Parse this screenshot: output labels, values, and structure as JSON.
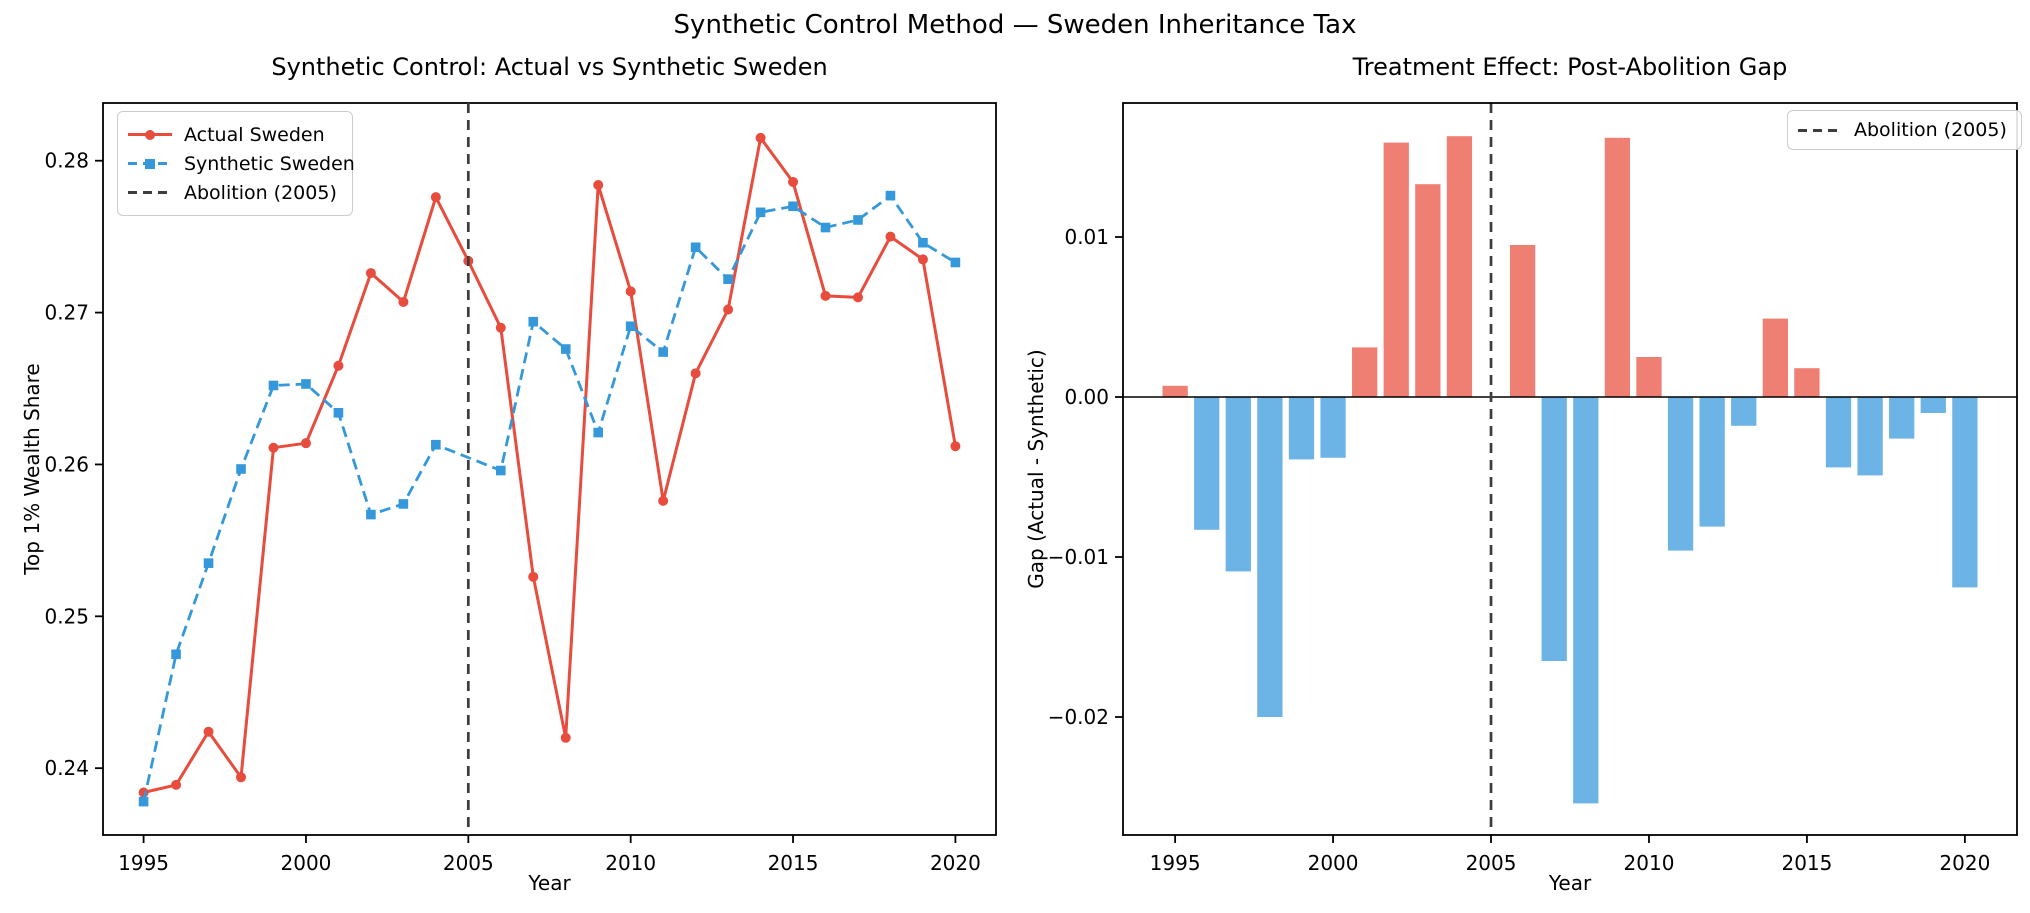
{
  "figure": {
    "suptitle": "Synthetic Control Method — Sweden Inheritance Tax",
    "background": "#ffffff"
  },
  "colors": {
    "actual_line": "#e74c3c",
    "synthetic_line": "#3498db",
    "bar_positive": "#ee7f72",
    "bar_negative": "#6db4e6",
    "abolition_line": "#3d3d3d",
    "zero_line": "#000000",
    "axis": "#000000",
    "legend_border": "#cccccc"
  },
  "chart_data": [
    {
      "type": "line",
      "title": "Synthetic Control: Actual vs Synthetic Sweden",
      "xlabel": "Year",
      "ylabel": "Top 1% Wealth Share",
      "x": [
        1995,
        1996,
        1997,
        1998,
        1999,
        2000,
        2001,
        2002,
        2003,
        2004,
        2005,
        2006,
        2007,
        2008,
        2009,
        2010,
        2011,
        2012,
        2013,
        2014,
        2015,
        2016,
        2017,
        2018,
        2019,
        2020
      ],
      "series": [
        {
          "name": "Actual Sweden",
          "color": "#e74c3c",
          "style": "solid",
          "marker": "circle",
          "values": [
            0.2384,
            0.2389,
            0.2424,
            0.2394,
            0.2611,
            0.2614,
            0.2665,
            0.2726,
            0.2707,
            0.2776,
            0.2734,
            0.269,
            0.2526,
            0.242,
            0.2784,
            0.2714,
            0.2576,
            0.266,
            0.2702,
            0.2815,
            0.2786,
            0.2711,
            0.271,
            0.275,
            0.2735,
            0.2612
          ]
        },
        {
          "name": "Synthetic Sweden",
          "color": "#3498db",
          "style": "dashed",
          "marker": "square",
          "values": [
            0.2378,
            0.2475,
            0.2535,
            0.2597,
            0.2652,
            0.2653,
            0.2634,
            0.2567,
            0.2574,
            0.2613,
            null,
            0.2596,
            0.2694,
            0.2676,
            0.2621,
            0.2691,
            0.2674,
            0.2743,
            0.2722,
            0.2766,
            0.277,
            0.2756,
            0.2761,
            0.2777,
            0.2746,
            0.2733
          ]
        }
      ],
      "vline": {
        "x": 2005,
        "label": "Abolition (2005)"
      },
      "legend": [
        "Actual Sweden",
        "Synthetic Sweden",
        "Abolition (2005)"
      ],
      "legend_position": "upper left",
      "xlim": [
        1993.75,
        2021.25
      ],
      "ylim": [
        0.2356,
        0.2838
      ],
      "xticks": [
        1995,
        2000,
        2005,
        2010,
        2015,
        2020
      ],
      "xtick_labels": [
        "1995",
        "2000",
        "2005",
        "2010",
        "2015",
        "2020"
      ],
      "yticks": [
        0.24,
        0.25,
        0.26,
        0.27,
        0.28
      ],
      "ytick_labels": [
        "0.24",
        "0.25",
        "0.26",
        "0.27",
        "0.28"
      ],
      "grid": false
    },
    {
      "type": "bar",
      "title": "Treatment Effect: Post-Abolition Gap",
      "xlabel": "Year",
      "ylabel": "Gap (Actual - Synthetic)",
      "categories": [
        1995,
        1996,
        1997,
        1998,
        1999,
        2000,
        2001,
        2002,
        2003,
        2004,
        2005,
        2006,
        2007,
        2008,
        2009,
        2010,
        2011,
        2012,
        2013,
        2014,
        2015,
        2016,
        2017,
        2018,
        2019,
        2020
      ],
      "values": [
        0.0007,
        -0.0083,
        -0.0109,
        -0.02,
        -0.0039,
        -0.0038,
        0.0031,
        0.0159,
        0.0133,
        0.0163,
        null,
        0.0095,
        -0.0165,
        -0.0254,
        0.0162,
        0.0025,
        -0.0096,
        -0.0081,
        -0.0018,
        0.0049,
        0.0018,
        -0.0044,
        -0.0049,
        -0.0026,
        -0.001,
        -0.0119
      ],
      "bar_width_years": 0.8,
      "positive_color": "#ee7f72",
      "negative_color": "#6db4e6",
      "vline": {
        "x": 2005,
        "label": "Abolition (2005)"
      },
      "legend": [
        "Abolition (2005)"
      ],
      "legend_position": "upper right",
      "xlim": [
        1993.35,
        2021.65
      ],
      "ylim": [
        -0.027375,
        0.018375
      ],
      "xticks": [
        1995,
        2000,
        2005,
        2010,
        2015,
        2020
      ],
      "xtick_labels": [
        "1995",
        "2000",
        "2005",
        "2010",
        "2015",
        "2020"
      ],
      "yticks": [
        0.01,
        0.0,
        -0.01,
        -0.02
      ],
      "ytick_labels": [
        "0.01",
        "0.00",
        "−0.01",
        "−0.02"
      ],
      "zero_line": 0.0,
      "grid": false
    }
  ]
}
